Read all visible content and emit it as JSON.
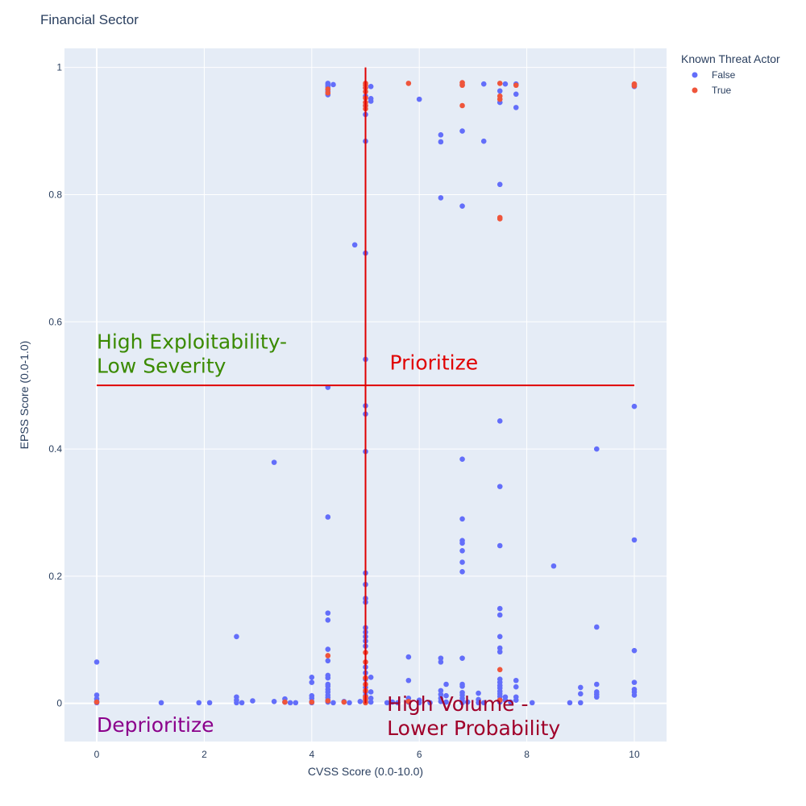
{
  "chart_data": {
    "type": "scatter",
    "title": "Financial Sector",
    "xlabel": "CVSS Score (0.0-10.0)",
    "ylabel": "EPSS Score (0.0-1.0)",
    "xlim": [
      -0.6,
      10.6
    ],
    "ylim": [
      -0.06,
      1.03
    ],
    "x_ticks": [
      0,
      2,
      4,
      6,
      8,
      10
    ],
    "x_tick_labels": [
      "0",
      "2",
      "4",
      "6",
      "8",
      "10"
    ],
    "y_ticks": [
      0,
      0.2,
      0.4,
      0.6,
      0.8,
      1
    ],
    "y_tick_labels": [
      "0",
      "0.2",
      "0.4",
      "0.6",
      "0.8",
      "1"
    ],
    "grid": true,
    "legend": {
      "title": "Known Threat Actor",
      "placement": "top-right"
    },
    "colors": {
      "False": "#636efa",
      "True": "#ef553b",
      "plot_bg": "#e5ecf6",
      "threshold": "#e00000"
    },
    "series": [
      {
        "name": "False",
        "color": "#636efa",
        "points": [
          [
            0,
            0.065
          ],
          [
            0,
            0.013
          ],
          [
            0,
            0.007
          ],
          [
            0,
            0.003
          ],
          [
            0,
            0.001
          ],
          [
            1.2,
            0.001
          ],
          [
            1.9,
            0.001
          ],
          [
            2.1,
            0.001
          ],
          [
            2.6,
            0.105
          ],
          [
            2.6,
            0.01
          ],
          [
            2.6,
            0.005
          ],
          [
            2.6,
            0.001
          ],
          [
            2.7,
            0.001
          ],
          [
            2.9,
            0.004
          ],
          [
            3.3,
            0.379
          ],
          [
            3.3,
            0.003
          ],
          [
            3.5,
            0.007
          ],
          [
            3.5,
            0.002
          ],
          [
            3.6,
            0.001
          ],
          [
            3.7,
            0.001
          ],
          [
            4.0,
            0.041
          ],
          [
            4.0,
            0.033
          ],
          [
            4.0,
            0.012
          ],
          [
            4.0,
            0.008
          ],
          [
            4.0,
            0.003
          ],
          [
            4.0,
            0.001
          ],
          [
            4.3,
            0.975
          ],
          [
            4.3,
            0.972
          ],
          [
            4.3,
            0.969
          ],
          [
            4.3,
            0.965
          ],
          [
            4.3,
            0.962
          ],
          [
            4.3,
            0.957
          ],
          [
            4.3,
            0.497
          ],
          [
            4.3,
            0.293
          ],
          [
            4.3,
            0.142
          ],
          [
            4.3,
            0.131
          ],
          [
            4.3,
            0.085
          ],
          [
            4.3,
            0.067
          ],
          [
            4.3,
            0.044
          ],
          [
            4.3,
            0.04
          ],
          [
            4.3,
            0.03
          ],
          [
            4.3,
            0.027
          ],
          [
            4.3,
            0.022
          ],
          [
            4.3,
            0.018
          ],
          [
            4.3,
            0.013
          ],
          [
            4.3,
            0.009
          ],
          [
            4.3,
            0.005
          ],
          [
            4.3,
            0.002
          ],
          [
            4.4,
            0.973
          ],
          [
            4.4,
            0.001
          ],
          [
            4.6,
            0.003
          ],
          [
            4.7,
            0.001
          ],
          [
            4.8,
            0.721
          ],
          [
            4.9,
            0.003
          ],
          [
            5.0,
            0.968
          ],
          [
            5.0,
            0.955
          ],
          [
            5.0,
            0.94
          ],
          [
            5.0,
            0.926
          ],
          [
            5.0,
            0.884
          ],
          [
            5.0,
            0.708
          ],
          [
            5.0,
            0.541
          ],
          [
            5.0,
            0.468
          ],
          [
            5.0,
            0.455
          ],
          [
            5.0,
            0.396
          ],
          [
            5.0,
            0.205
          ],
          [
            5.0,
            0.187
          ],
          [
            5.0,
            0.165
          ],
          [
            5.0,
            0.159
          ],
          [
            5.0,
            0.119
          ],
          [
            5.0,
            0.112
          ],
          [
            5.0,
            0.105
          ],
          [
            5.0,
            0.098
          ],
          [
            5.0,
            0.09
          ],
          [
            5.0,
            0.057
          ],
          [
            5.0,
            0.048
          ],
          [
            5.0,
            0.038
          ],
          [
            5.0,
            0.025
          ],
          [
            5.0,
            0.018
          ],
          [
            5.0,
            0.012
          ],
          [
            5.0,
            0.008
          ],
          [
            5.0,
            0.004
          ],
          [
            5.0,
            0.002
          ],
          [
            5.1,
            0.97
          ],
          [
            5.1,
            0.951
          ],
          [
            5.1,
            0.947
          ],
          [
            5.1,
            0.041
          ],
          [
            5.1,
            0.018
          ],
          [
            5.1,
            0.008
          ],
          [
            5.1,
            0.002
          ],
          [
            5.4,
            0.001
          ],
          [
            5.5,
            0.002
          ],
          [
            5.6,
            0.001
          ],
          [
            5.8,
            0.073
          ],
          [
            5.8,
            0.036
          ],
          [
            5.8,
            0.008
          ],
          [
            5.8,
            0.002
          ],
          [
            6.0,
            0.95
          ],
          [
            6.0,
            0.005
          ],
          [
            6.0,
            0.001
          ],
          [
            6.2,
            0.001
          ],
          [
            6.4,
            0.894
          ],
          [
            6.4,
            0.883
          ],
          [
            6.4,
            0.795
          ],
          [
            6.4,
            0.071
          ],
          [
            6.4,
            0.065
          ],
          [
            6.4,
            0.02
          ],
          [
            6.4,
            0.014
          ],
          [
            6.4,
            0.008
          ],
          [
            6.4,
            0.003
          ],
          [
            6.5,
            0.03
          ],
          [
            6.5,
            0.012
          ],
          [
            6.5,
            0.002
          ],
          [
            6.8,
            0.973
          ],
          [
            6.8,
            0.9
          ],
          [
            6.8,
            0.782
          ],
          [
            6.8,
            0.384
          ],
          [
            6.8,
            0.29
          ],
          [
            6.8,
            0.256
          ],
          [
            6.8,
            0.252
          ],
          [
            6.8,
            0.24
          ],
          [
            6.8,
            0.222
          ],
          [
            6.8,
            0.207
          ],
          [
            6.8,
            0.071
          ],
          [
            6.8,
            0.03
          ],
          [
            6.8,
            0.027
          ],
          [
            6.8,
            0.017
          ],
          [
            6.8,
            0.013
          ],
          [
            6.8,
            0.008
          ],
          [
            6.8,
            0.004
          ],
          [
            6.8,
            0.001
          ],
          [
            6.9,
            0.002
          ],
          [
            7.1,
            0.016
          ],
          [
            7.1,
            0.006
          ],
          [
            7.1,
            0.001
          ],
          [
            7.2,
            0.974
          ],
          [
            7.2,
            0.884
          ],
          [
            7.2,
            0.001
          ],
          [
            7.5,
            0.963
          ],
          [
            7.5,
            0.945
          ],
          [
            7.5,
            0.816
          ],
          [
            7.5,
            0.444
          ],
          [
            7.5,
            0.341
          ],
          [
            7.5,
            0.248
          ],
          [
            7.5,
            0.149
          ],
          [
            7.5,
            0.139
          ],
          [
            7.5,
            0.105
          ],
          [
            7.5,
            0.087
          ],
          [
            7.5,
            0.081
          ],
          [
            7.5,
            0.038
          ],
          [
            7.5,
            0.033
          ],
          [
            7.5,
            0.028
          ],
          [
            7.5,
            0.024
          ],
          [
            7.5,
            0.019
          ],
          [
            7.5,
            0.015
          ],
          [
            7.5,
            0.011
          ],
          [
            7.5,
            0.006
          ],
          [
            7.5,
            0.002
          ],
          [
            7.6,
            0.974
          ],
          [
            7.6,
            0.01
          ],
          [
            7.6,
            0.005
          ],
          [
            7.7,
            0.002
          ],
          [
            7.8,
            0.974
          ],
          [
            7.8,
            0.958
          ],
          [
            7.8,
            0.937
          ],
          [
            7.8,
            0.036
          ],
          [
            7.8,
            0.026
          ],
          [
            7.8,
            0.01
          ],
          [
            7.8,
            0.005
          ],
          [
            8.1,
            0.001
          ],
          [
            8.5,
            0.216
          ],
          [
            8.8,
            0.001
          ],
          [
            9.0,
            0.025
          ],
          [
            9.0,
            0.015
          ],
          [
            9.0,
            0.001
          ],
          [
            9.3,
            0.4
          ],
          [
            9.3,
            0.12
          ],
          [
            9.3,
            0.03
          ],
          [
            9.3,
            0.018
          ],
          [
            9.3,
            0.014
          ],
          [
            9.3,
            0.01
          ],
          [
            10.0,
            0.973
          ],
          [
            10.0,
            0.97
          ],
          [
            10.0,
            0.467
          ],
          [
            10.0,
            0.257
          ],
          [
            10.0,
            0.083
          ],
          [
            10.0,
            0.033
          ],
          [
            10.0,
            0.022
          ],
          [
            10.0,
            0.018
          ],
          [
            10.0,
            0.013
          ]
        ]
      },
      {
        "name": "True",
        "color": "#ef553b",
        "points": [
          [
            0,
            0.002
          ],
          [
            3.5,
            0.002
          ],
          [
            4.0,
            0.002
          ],
          [
            4.3,
            0.966
          ],
          [
            4.3,
            0.96
          ],
          [
            4.3,
            0.075
          ],
          [
            4.3,
            0.004
          ],
          [
            4.6,
            0.002
          ],
          [
            5.0,
            0.975
          ],
          [
            5.0,
            0.972
          ],
          [
            5.0,
            0.968
          ],
          [
            5.0,
            0.962
          ],
          [
            5.0,
            0.952
          ],
          [
            5.0,
            0.945
          ],
          [
            5.0,
            0.94
          ],
          [
            5.0,
            0.935
          ],
          [
            5.0,
            0.08
          ],
          [
            5.0,
            0.065
          ],
          [
            5.0,
            0.04
          ],
          [
            5.0,
            0.03
          ],
          [
            5.0,
            0.02
          ],
          [
            5.0,
            0.01
          ],
          [
            5.0,
            0.006
          ],
          [
            5.0,
            0.001
          ],
          [
            5.8,
            0.975
          ],
          [
            5.8,
            0.003
          ],
          [
            6.8,
            0.976
          ],
          [
            6.8,
            0.972
          ],
          [
            6.8,
            0.94
          ],
          [
            7.5,
            0.975
          ],
          [
            7.5,
            0.955
          ],
          [
            7.5,
            0.95
          ],
          [
            7.5,
            0.764
          ],
          [
            7.5,
            0.762
          ],
          [
            7.5,
            0.053
          ],
          [
            7.5,
            0.005
          ],
          [
            7.8,
            0.972
          ],
          [
            10.0,
            0.974
          ],
          [
            10.0,
            0.971
          ]
        ]
      }
    ],
    "threshold_lines": [
      {
        "orientation": "vertical",
        "x": 5,
        "y_range": [
          0,
          1
        ]
      },
      {
        "orientation": "horizontal",
        "y": 0.5,
        "x_range": [
          0,
          10
        ]
      }
    ],
    "annotations": [
      {
        "key": "high_exploitability",
        "lines": [
          "High Exploitability-",
          "Low Severity"
        ],
        "x": 0,
        "y": 0.52,
        "color": "#3a8a00"
      },
      {
        "key": "prioritize",
        "lines": [
          "Prioritize"
        ],
        "x": 5.45,
        "y": 0.525,
        "color": "#e00000"
      },
      {
        "key": "deprioritize",
        "lines": [
          "Deprioritize"
        ],
        "x": 0,
        "y": -0.045,
        "color": "#8b008b"
      },
      {
        "key": "high_volume",
        "lines": [
          "High Volume -",
          "Lower Probability"
        ],
        "x": 5.4,
        "y": -0.05,
        "color": "#a0002a"
      }
    ]
  }
}
